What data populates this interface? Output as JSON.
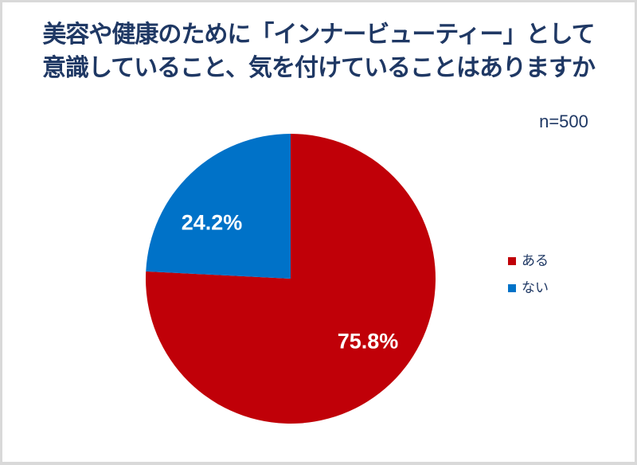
{
  "title": {
    "line1": "美容や健康のために「インナービューティー」として",
    "line2": "意識していること、気を付けていることはありますか"
  },
  "sample_size": "n=500",
  "chart_data": {
    "type": "pie",
    "title": "美容や健康のために「インナービューティー」として意識していること、気を付けていることはありますか",
    "sample_size_note": "n=500",
    "categories": [
      "ある",
      "ない"
    ],
    "values": [
      75.8,
      24.2
    ],
    "unit": "%",
    "data_labels": [
      "75.8%",
      "24.2%"
    ],
    "colors": [
      "#C00008",
      "#0072C8"
    ],
    "start_angle_deg": 0,
    "direction": "clockwise",
    "legend_position": "right",
    "data_label_color": "#FFFFFF"
  },
  "colors": {
    "title_text": "#1F3864",
    "border": "#D9D9D9",
    "background": "#FFFFFF"
  }
}
